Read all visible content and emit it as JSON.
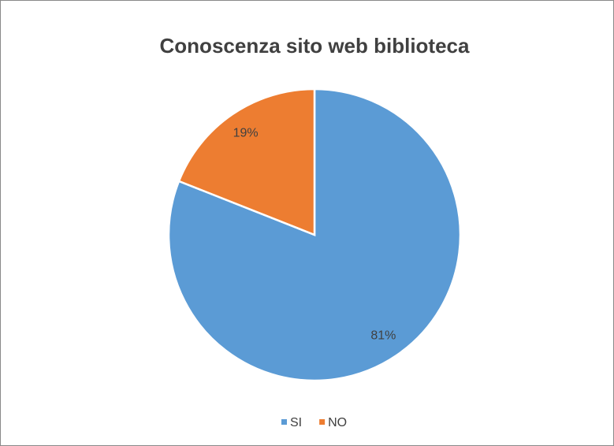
{
  "chart_data": {
    "type": "pie",
    "title": "Conoscenza sito web biblioteca",
    "categories": [
      "SI",
      "NO"
    ],
    "values": [
      81,
      19
    ],
    "value_labels": [
      "81%",
      "19%"
    ],
    "colors": [
      "#5b9bd5",
      "#ed7d31"
    ],
    "legend": "bottom"
  }
}
